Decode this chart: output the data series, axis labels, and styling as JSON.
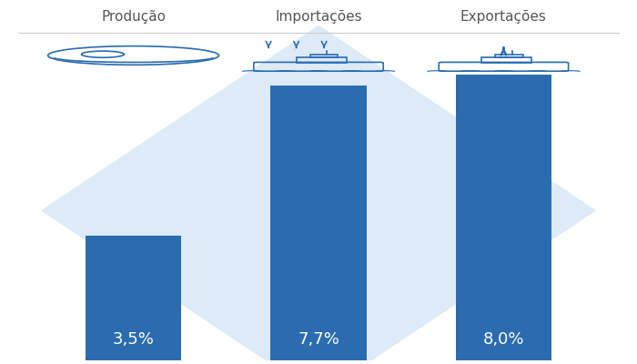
{
  "categories": [
    "Produção",
    "Importações",
    "Exportações"
  ],
  "values": [
    3.5,
    7.7,
    8.0
  ],
  "labels": [
    "3,5%",
    "7,7%",
    "8,0%"
  ],
  "bar_color": "#2b6cb0",
  "bar_width": 0.52,
  "background_color": "#ffffff",
  "diamond_color": "#ddeaf7",
  "diamond_number_color": "#c8dcf0",
  "label_color": "#ffffff",
  "label_fontsize": 13,
  "category_fontsize": 11,
  "category_color": "#555555",
  "ylim": [
    0,
    10
  ],
  "xlim": [
    0.3,
    3.7
  ],
  "bar_positions": [
    1,
    2,
    3
  ]
}
